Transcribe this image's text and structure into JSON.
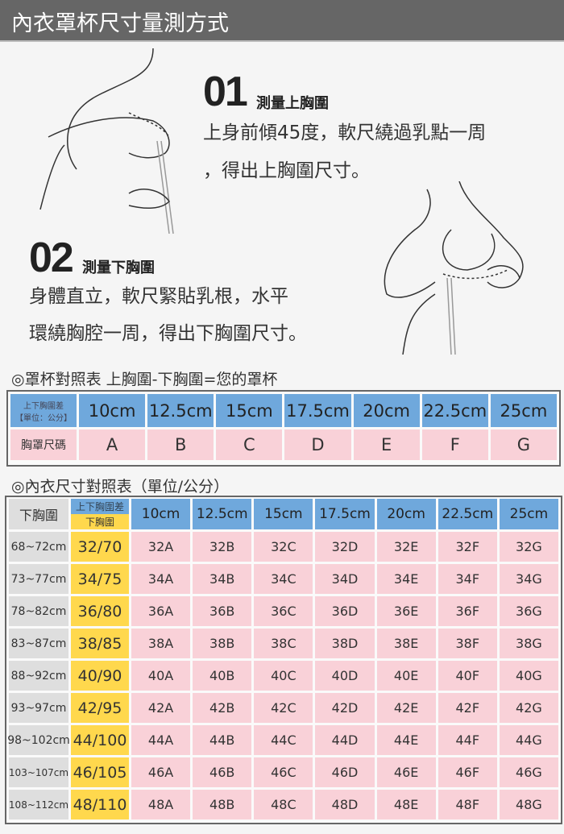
{
  "header": {
    "title": "內衣罩杯尺寸量測方式"
  },
  "steps": [
    {
      "num": "01",
      "title": "測量上胸圍",
      "lines": [
        "上身前傾45度，軟尺繞過乳點一周",
        "，得出上胸圍尺寸。"
      ]
    },
    {
      "num": "02",
      "title": "測量下胸圍",
      "lines": [
        "身體直立，軟尺緊貼乳根，水平",
        "環繞胸腔一周，得出下胸圍尺寸。"
      ]
    }
  ],
  "cup_table": {
    "heading": "◎罩杯對照表 上胸圍-下胸圍=您的罩杯",
    "row1_label_line1": "上下胸圍差",
    "row1_label_line2": "【單位：公分】",
    "row2_label": "胸罩尺碼",
    "diffs": [
      "10cm",
      "12.5cm",
      "15cm",
      "17.5cm",
      "20cm",
      "22.5cm",
      "25cm"
    ],
    "cups": [
      "A",
      "B",
      "C",
      "D",
      "E",
      "F",
      "G"
    ]
  },
  "size_table": {
    "heading": "◎內衣尺寸對照表（單位/公分）",
    "corner_label": "下胸圍",
    "diff_label": "上下胸圍差",
    "under_label": "下胸圍",
    "diffs": [
      "10cm",
      "12.5cm",
      "15cm",
      "17.5cm",
      "20cm",
      "22.5cm",
      "25cm"
    ],
    "rows": [
      {
        "range": "68~72cm",
        "band": "32/70",
        "sizes": [
          "32A",
          "32B",
          "32C",
          "32D",
          "32E",
          "32F",
          "32G"
        ]
      },
      {
        "range": "73~77cm",
        "band": "34/75",
        "sizes": [
          "34A",
          "34B",
          "34C",
          "34D",
          "34E",
          "34F",
          "34G"
        ]
      },
      {
        "range": "78~82cm",
        "band": "36/80",
        "sizes": [
          "36A",
          "36B",
          "36C",
          "36D",
          "36E",
          "36F",
          "36G"
        ]
      },
      {
        "range": "83~87cm",
        "band": "38/85",
        "sizes": [
          "38A",
          "38B",
          "38C",
          "38D",
          "38E",
          "38F",
          "38G"
        ]
      },
      {
        "range": "88~92cm",
        "band": "40/90",
        "sizes": [
          "40A",
          "40B",
          "40C",
          "40D",
          "40E",
          "40F",
          "40G"
        ]
      },
      {
        "range": "93~97cm",
        "band": "42/95",
        "sizes": [
          "42A",
          "42B",
          "42C",
          "42D",
          "42E",
          "42F",
          "42G"
        ]
      },
      {
        "range": "98~102cm",
        "band": "44/100",
        "sizes": [
          "44A",
          "44B",
          "44C",
          "44D",
          "44E",
          "44F",
          "44G"
        ]
      },
      {
        "range": "103~107cm",
        "band": "46/105",
        "sizes": [
          "46A",
          "46B",
          "46C",
          "46D",
          "46E",
          "46F",
          "46G"
        ]
      },
      {
        "range": "108~112cm",
        "band": "48/110",
        "sizes": [
          "48A",
          "48B",
          "48C",
          "48D",
          "48E",
          "48F",
          "48G"
        ]
      }
    ]
  },
  "colors": {
    "header_bg": "#666666",
    "blue": "#6fa8dc",
    "pink": "#f9d1d8",
    "yellow": "#ffd84d",
    "gray": "#dedede"
  }
}
